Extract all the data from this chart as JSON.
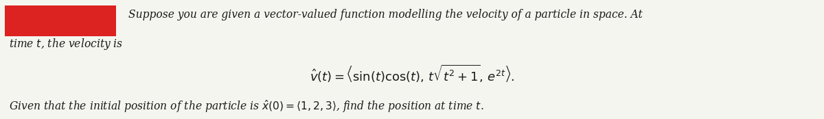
{
  "background_color": "#f5f5f0",
  "text_color": "#1a1a1a",
  "red_box_color": "#dd2222",
  "fig_width": 12.0,
  "fig_height": 1.74,
  "dpi": 100,
  "line1": "Suppose you are given a vector-valued function modelling the velocity of a particle in space. At",
  "line2": "time $t$, the velocity is",
  "formula": "$\\hat{v}(t) = \\left\\langle \\sin(t)\\cos(t),\\, t\\sqrt{t^2+1},\\, e^{2t} \\right\\rangle.$",
  "line3": "Given that the initial position of the particle is $\\hat{x}(0) = \\langle 1, 2, 3 \\rangle$, find the position at time $t$."
}
